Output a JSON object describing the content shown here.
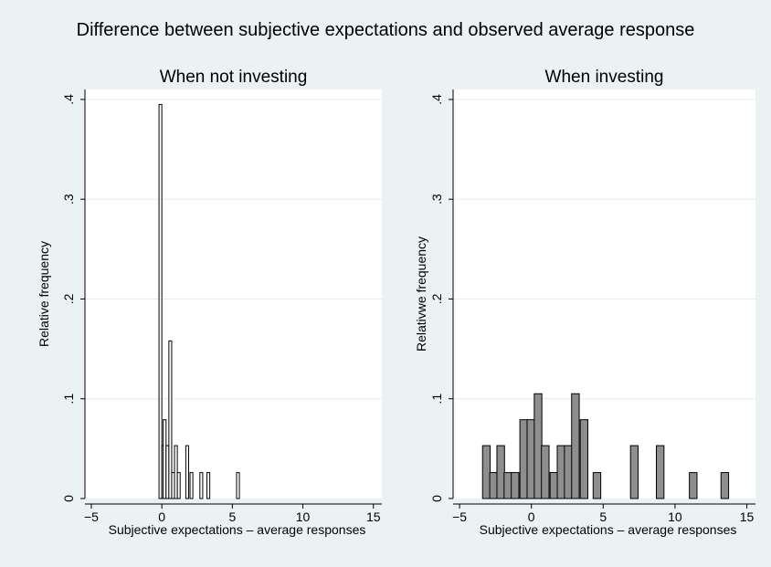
{
  "figure": {
    "title": "Difference between subjective expectations and observed average response",
    "background": "#eaf2f3",
    "plot_background": "#ffffff",
    "grid_color": "#e6ecec"
  },
  "chart_data": [
    {
      "type": "bar",
      "histogram": true,
      "title": "When not investing",
      "xlabel": "Subjective expectations – average responses",
      "ylabel": "Relative frequency",
      "xlim": [
        -5,
        15
      ],
      "ylim": [
        0,
        0.4
      ],
      "xticks": [
        -5,
        0,
        5,
        10,
        15
      ],
      "xtick_labels": [
        "−5",
        "0",
        "5",
        "10",
        "15"
      ],
      "yticks": [
        0,
        0.1,
        0.2,
        0.3,
        0.4
      ],
      "ytick_labels": [
        "0",
        ".1",
        ".2",
        ".3",
        ".4"
      ],
      "grid": true,
      "bar_fill": "#ffffff",
      "bin_width": 0.2,
      "bins": [
        {
          "x": -0.2,
          "y": 0.395
        },
        {
          "x": 0.0,
          "y": 0.053
        },
        {
          "x": 0.1,
          "y": 0.079
        },
        {
          "x": 0.3,
          "y": 0.053
        },
        {
          "x": 0.5,
          "y": 0.158
        },
        {
          "x": 0.7,
          "y": 0.026
        },
        {
          "x": 0.9,
          "y": 0.053
        },
        {
          "x": 1.1,
          "y": 0.026
        },
        {
          "x": 1.7,
          "y": 0.053
        },
        {
          "x": 2.0,
          "y": 0.026
        },
        {
          "x": 2.7,
          "y": 0.026
        },
        {
          "x": 3.2,
          "y": 0.026
        },
        {
          "x": 5.3,
          "y": 0.026
        }
      ]
    },
    {
      "type": "bar",
      "histogram": true,
      "title": "When investing",
      "xlabel": "Subjective expectations – average responses",
      "ylabel": "Relativwe frequency",
      "xlim": [
        -5,
        15
      ],
      "ylim": [
        0,
        0.4
      ],
      "xticks": [
        -5,
        0,
        5,
        10,
        15
      ],
      "xtick_labels": [
        "−5",
        "0",
        "5",
        "10",
        "15"
      ],
      "yticks": [
        0,
        0.1,
        0.2,
        0.3,
        0.4
      ],
      "ytick_labels": [
        "0",
        ".1",
        ".2",
        ".3",
        ".4"
      ],
      "grid": true,
      "bar_fill": "#8e8e8e",
      "bin_width": 0.53,
      "bins": [
        {
          "x": -3.4,
          "y": 0.053
        },
        {
          "x": -2.9,
          "y": 0.026
        },
        {
          "x": -2.4,
          "y": 0.053
        },
        {
          "x": -1.9,
          "y": 0.026
        },
        {
          "x": -1.4,
          "y": 0.026
        },
        {
          "x": -0.8,
          "y": 0.079
        },
        {
          "x": -0.3,
          "y": 0.079
        },
        {
          "x": 0.2,
          "y": 0.105
        },
        {
          "x": 0.7,
          "y": 0.053
        },
        {
          "x": 1.3,
          "y": 0.026
        },
        {
          "x": 1.8,
          "y": 0.053
        },
        {
          "x": 2.3,
          "y": 0.053
        },
        {
          "x": 2.8,
          "y": 0.105
        },
        {
          "x": 3.4,
          "y": 0.079
        },
        {
          "x": 4.3,
          "y": 0.026
        },
        {
          "x": 6.9,
          "y": 0.053
        },
        {
          "x": 8.7,
          "y": 0.053
        },
        {
          "x": 11.0,
          "y": 0.026
        },
        {
          "x": 13.2,
          "y": 0.026
        }
      ]
    }
  ]
}
